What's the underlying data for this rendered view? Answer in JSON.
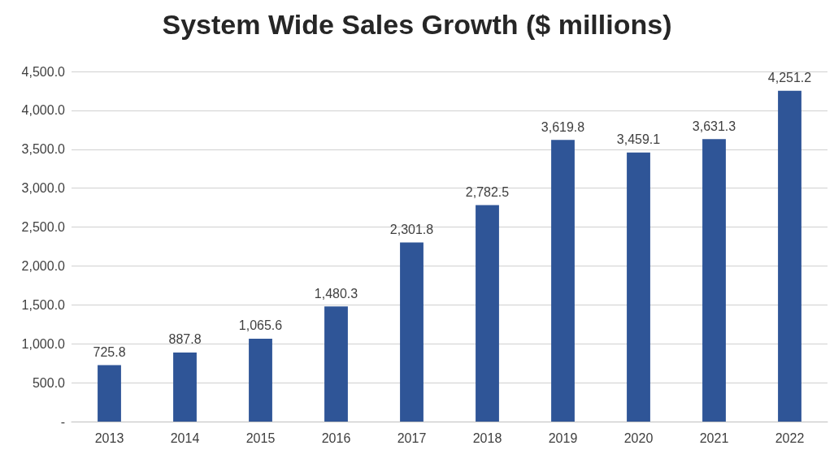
{
  "chart_data": {
    "type": "bar",
    "title": "System Wide Sales Growth ($ millions)",
    "categories": [
      "2013",
      "2014",
      "2015",
      "2016",
      "2017",
      "2018",
      "2019",
      "2020",
      "2021",
      "2022"
    ],
    "values": [
      725.8,
      887.8,
      1065.6,
      1480.3,
      2301.8,
      2782.5,
      3619.8,
      3459.1,
      3631.3,
      4251.2
    ],
    "value_labels": [
      "725.8",
      "887.8",
      "1,065.6",
      "1,480.3",
      "2,301.8",
      "2,782.5",
      "3,619.8",
      "3,459.1",
      "3,631.3",
      "4,251.2"
    ],
    "color": "#2f5597",
    "ylim": [
      0,
      4500
    ],
    "yticks": [
      {
        "value": 0,
        "label": "-"
      },
      {
        "value": 500,
        "label": "500.0"
      },
      {
        "value": 1000,
        "label": "1,000.0"
      },
      {
        "value": 1500,
        "label": "1,500.0"
      },
      {
        "value": 2000,
        "label": "2,000.0"
      },
      {
        "value": 2500,
        "label": "2,500.0"
      },
      {
        "value": 3000,
        "label": "3,000.0"
      },
      {
        "value": 3500,
        "label": "3,500.0"
      },
      {
        "value": 4000,
        "label": "4,000.0"
      },
      {
        "value": 4500,
        "label": "4,500.0"
      }
    ],
    "grid": "y"
  }
}
